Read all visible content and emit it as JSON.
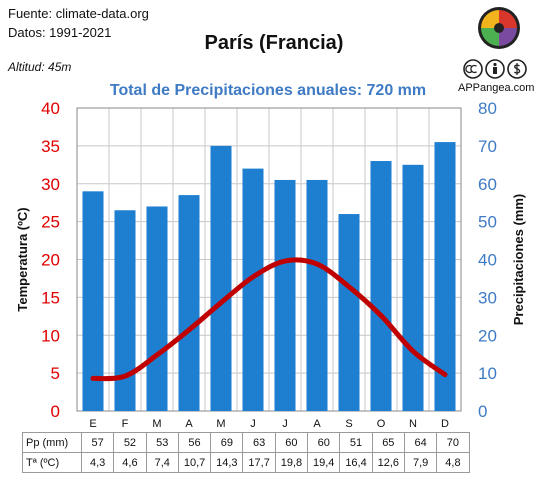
{
  "source": {
    "line1": "Fuente: climate-data.org",
    "line2": "Datos: 1991-2021"
  },
  "title": "París (Francia)",
  "altitude": "Altitud: 45m",
  "subtitle": "Total de Precipitaciones anuales: 720 mm",
  "site": "APPangea.com",
  "icons": [
    "appangea-logo-icon",
    "cc-icon",
    "by-icon",
    "nc-icon"
  ],
  "colors": {
    "bars": "#1E7FD0",
    "temp_line": "#C00000",
    "left_axis": "#E00000",
    "right_axis": "#3F7BC4",
    "subtitle": "#3F7BC4"
  },
  "chart_data": {
    "type": "bar+line",
    "categories": [
      "E",
      "F",
      "M",
      "A",
      "M",
      "J",
      "J",
      "A",
      "S",
      "O",
      "N",
      "D"
    ],
    "series": [
      {
        "name": "Pp (mm)",
        "type": "bar",
        "axis": "right",
        "values": [
          57,
          52,
          53,
          56,
          69,
          63,
          60,
          60,
          51,
          65,
          64,
          70
        ]
      },
      {
        "name": "Tª (ºC)",
        "type": "line",
        "axis": "left",
        "values": [
          4.3,
          4.6,
          7.4,
          10.7,
          14.3,
          17.7,
          19.8,
          19.4,
          16.4,
          12.6,
          7.9,
          4.8
        ]
      }
    ],
    "bar_heights_read": [
      58,
      53,
      54,
      57,
      70,
      64,
      61,
      61,
      52,
      66,
      65,
      71
    ],
    "ylabel_left": "Temperatura (ºC)",
    "ylabel_right": "Precipitaciones (mm)",
    "ylim_left": [
      0,
      40
    ],
    "ylim_right": [
      0,
      80
    ],
    "yticks_left": [
      "0",
      "5",
      "10",
      "15",
      "20",
      "25",
      "30",
      "35",
      "40"
    ],
    "yticks_right": [
      "0",
      "10",
      "20",
      "30",
      "40",
      "50",
      "60",
      "70",
      "80"
    ],
    "grid": true
  },
  "table": {
    "rows": [
      {
        "label": "Pp (mm)",
        "values": [
          "57",
          "52",
          "53",
          "56",
          "69",
          "63",
          "60",
          "60",
          "51",
          "65",
          "64",
          "70"
        ]
      },
      {
        "label": "Tª (ºC)",
        "values": [
          "4,3",
          "4,6",
          "7,4",
          "10,7",
          "14,3",
          "17,7",
          "19,8",
          "19,4",
          "16,4",
          "12,6",
          "7,9",
          "4,8"
        ]
      }
    ]
  }
}
